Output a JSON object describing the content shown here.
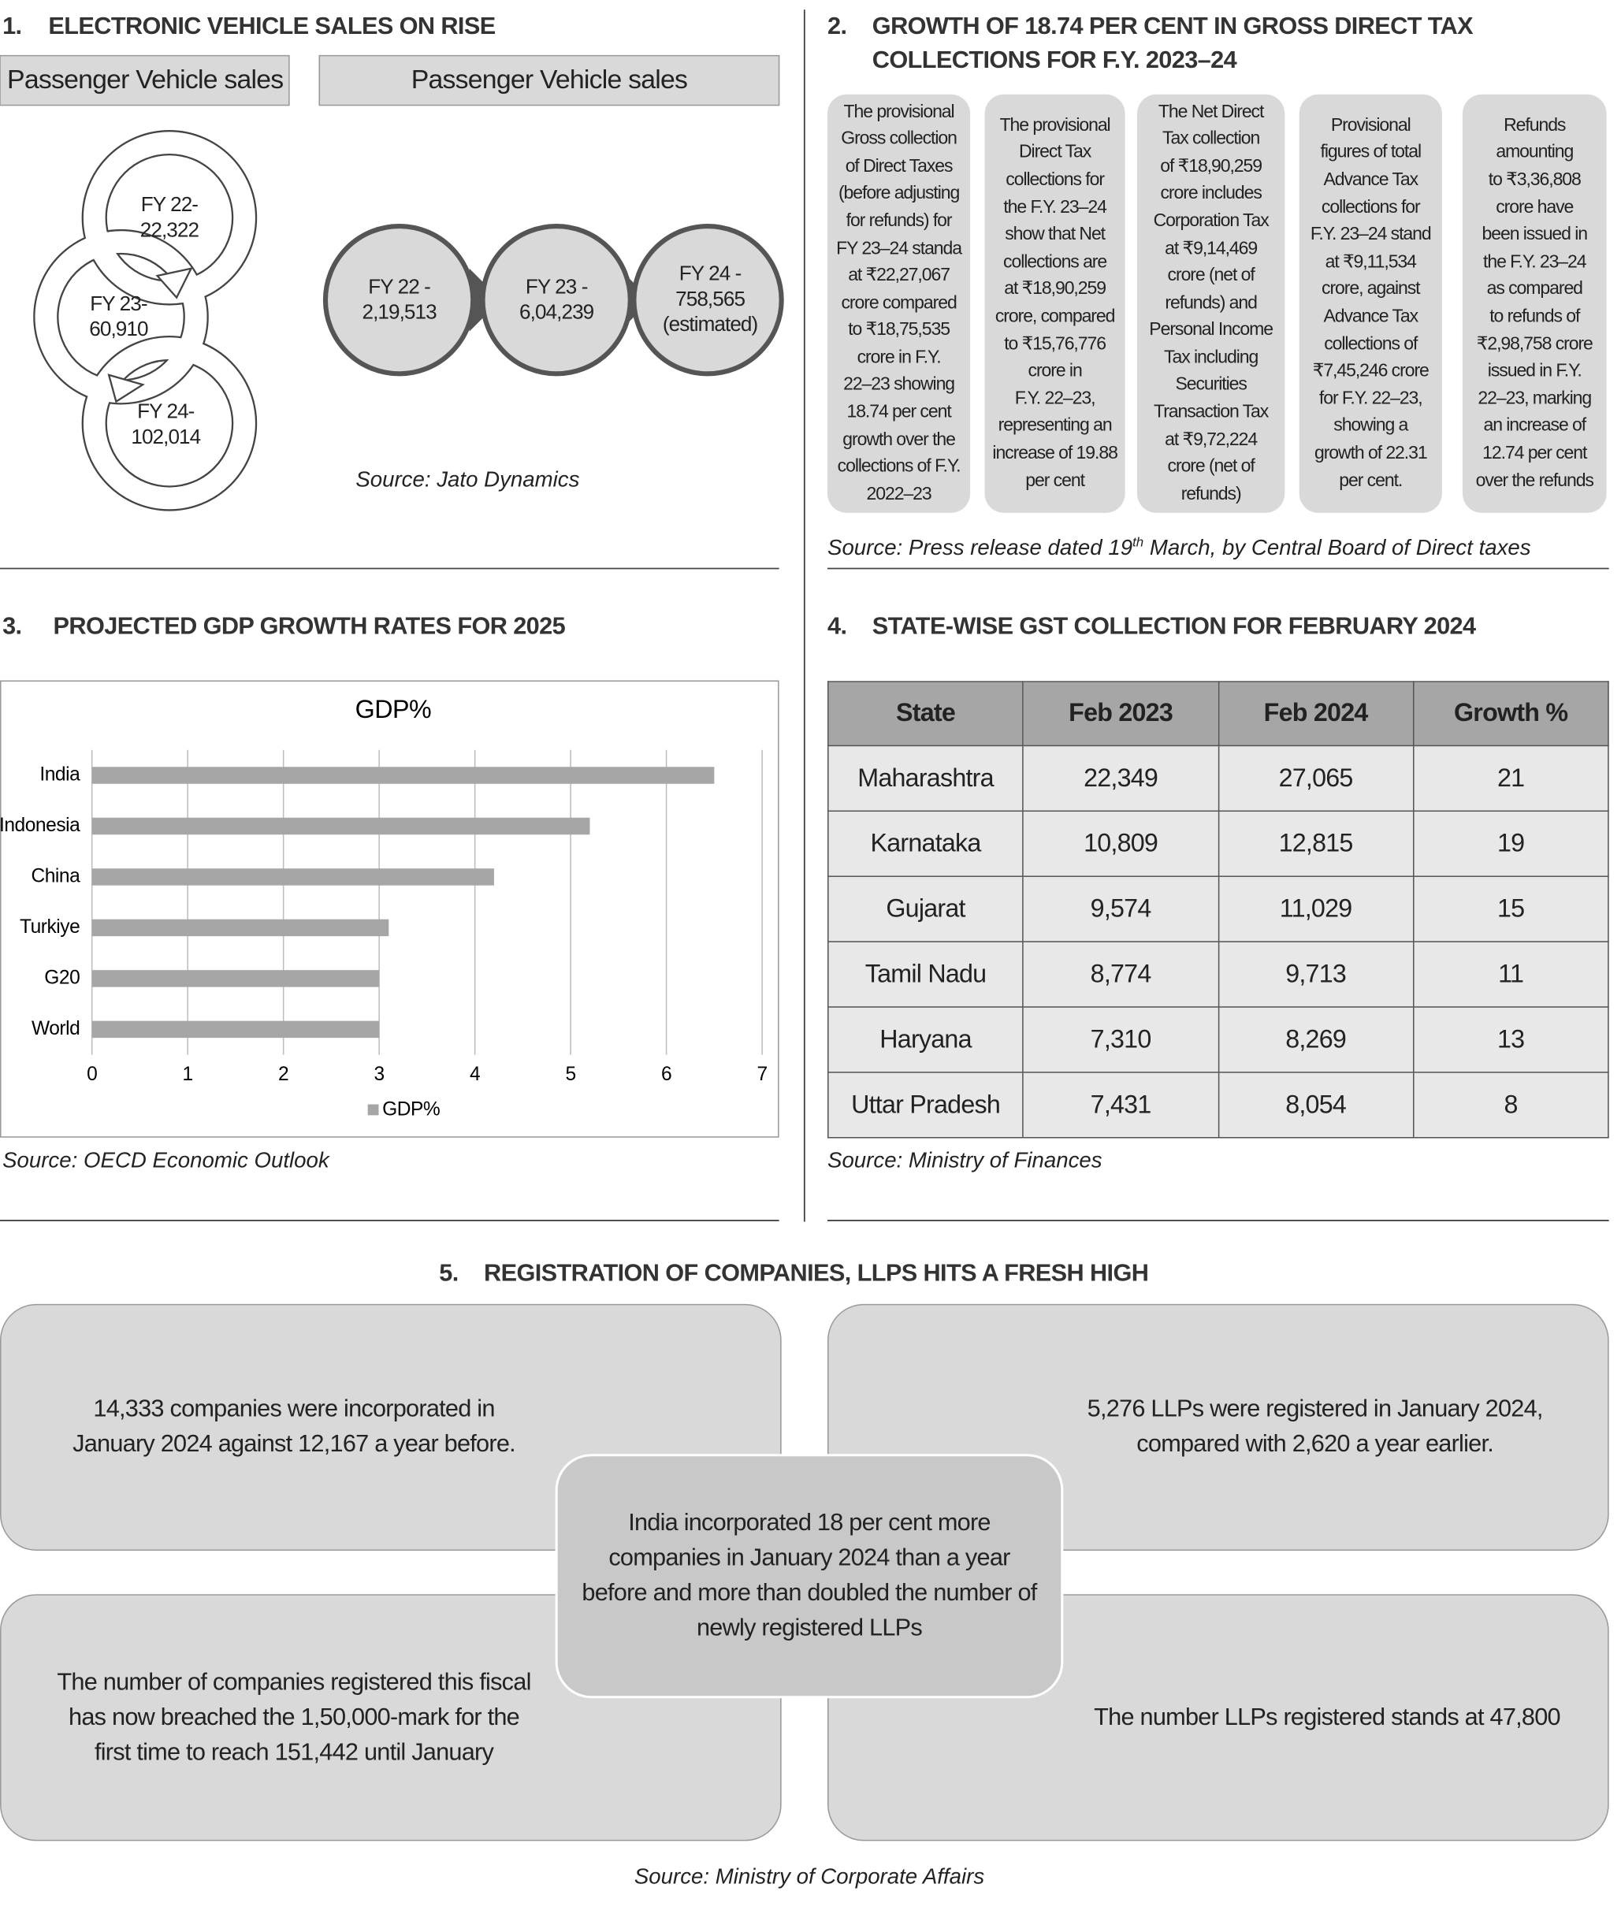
{
  "section1": {
    "number": "1.",
    "title": "ELECTRONIC VEHICLE SALES ON RISE",
    "left_header": "Passenger Vehicle sales",
    "right_header": "Passenger Vehicle sales",
    "left_cycle": [
      [
        "FY 22-",
        "22,322"
      ],
      [
        "FY 23-",
        "60,910"
      ],
      [
        "FY 24-",
        "102,014"
      ]
    ],
    "right_flow": [
      [
        "FY 22 -",
        "2,19,513"
      ],
      [
        "FY 23 -",
        "6,04,239"
      ],
      [
        "FY 24 -",
        "758,565",
        "(estimated)"
      ]
    ],
    "source": "Source: Jato Dynamics"
  },
  "section2": {
    "number": "2.",
    "title_lines": [
      "GROWTH OF 18.74 PER CENT IN GROSS DIRECT TAX",
      "COLLECTIONS FOR F.Y. 2023–24"
    ],
    "cards": [
      [
        "The provisional",
        "Gross collection",
        "of Direct Taxes",
        "(before adjusting",
        "for refunds) for",
        "FY 23–24 standa",
        "at ₹22,27,067",
        "crore compared",
        "to ₹18,75,535",
        "crore in F.Y.",
        "22–23 showing",
        "18.74 per cent",
        "growth over the",
        "collections of F.Y.",
        "2022–23"
      ],
      [
        "The provisional",
        "Direct Tax",
        "collections for",
        "the F.Y. 23–24",
        "show that Net",
        "collections are",
        "at ₹18,90,259",
        "crore, compared",
        "to ₹15,76,776",
        "crore in",
        "F.Y. 22–23,",
        "representing an",
        "increase of 19.88",
        "per cent"
      ],
      [
        "The Net Direct",
        "Tax collection",
        "of ₹18,90,259",
        "crore includes",
        "Corporation Tax",
        "at ₹9,14,469",
        "crore (net of",
        "refunds) and",
        "Personal Income",
        "Tax including",
        "Securities",
        "Transaction Tax",
        "at ₹9,72,224",
        "crore (net of",
        "refunds)"
      ],
      [
        "Provisional",
        "figures of total",
        "Advance Tax",
        "collections for",
        "F.Y. 23–24 stand",
        "at ₹9,11,534",
        "crore, against",
        "Advance Tax",
        "collections of",
        "₹7,45,246 crore",
        "for F.Y. 22–23,",
        "showing a",
        "growth of 22.31",
        "per cent."
      ],
      [
        "Refunds",
        "amounting",
        "to ₹3,36,808",
        "crore have",
        "been issued in",
        "the F.Y. 23–24",
        "as compared",
        "to refunds of",
        "₹2,98,758 crore",
        "issued in F.Y.",
        "22–23, marking",
        "an increase of",
        "12.74 per cent",
        "over the refunds"
      ]
    ],
    "source": {
      "before": "Source: Press release dated 19",
      "superscript": "th",
      "after": " March, by Central Board of Direct taxes"
    }
  },
  "section3": {
    "number": "3.",
    "title": "PROJECTED GDP GROWTH RATES FOR 2025",
    "chart_data": {
      "type": "bar",
      "orientation": "horizontal",
      "title": "GDP%",
      "categories": [
        "India",
        "Indonesia",
        "China",
        "Turkiye",
        "G20",
        "World"
      ],
      "series": [
        {
          "name": "GDP%",
          "color": "#a6a6a6",
          "values": [
            6.5,
            5.2,
            4.2,
            3.1,
            3.0,
            3.0
          ]
        }
      ],
      "xlim": [
        0,
        7
      ],
      "xticks": [
        0,
        1,
        2,
        3,
        4,
        5,
        6,
        7
      ],
      "grid": true,
      "legend": "bottom"
    },
    "source": "Source: OECD Economic Outlook"
  },
  "section4": {
    "number": "4.",
    "title": "STATE-WISE GST COLLECTION FOR FEBRUARY 2024",
    "table": {
      "header": [
        "State",
        "Feb 2023",
        "Feb 2024",
        "Growth %"
      ],
      "rows": [
        [
          "Maharashtra",
          "22,349",
          "27,065",
          "21"
        ],
        [
          "Karnataka",
          "10,809",
          "12,815",
          "19"
        ],
        [
          "Gujarat",
          "9,574",
          "11,029",
          "15"
        ],
        [
          "Tamil Nadu",
          "8,774",
          "9,713",
          "11"
        ],
        [
          "Haryana",
          "7,310",
          "8,269",
          "13"
        ],
        [
          "Uttar Pradesh",
          "7,431",
          "8,054",
          "8"
        ]
      ]
    },
    "source": "Source: Ministry of Finances"
  },
  "section5": {
    "number": "5.",
    "title": "REGISTRATION OF COMPANIES, LLPS HITS A FRESH HIGH",
    "top_left": [
      "14,333 companies were incorporated in",
      "January 2024 against 12,167 a year before."
    ],
    "top_right": [
      "5,276 LLPs were registered in January 2024,",
      "compared with 2,620 a year earlier."
    ],
    "bottom_left": [
      "The number of companies registered this fiscal",
      "has now breached the 1,50,000-mark for the",
      "first time to reach 151,442 until January"
    ],
    "bottom_right": [
      "The number LLPs registered stands at 47,800"
    ],
    "center": [
      "India incorporated 18 per cent more",
      "companies in January 2024 than a year",
      "before and more than doubled the number of",
      "newly registered LLPs"
    ],
    "source": "Source: Ministry of Corporate Affairs"
  }
}
